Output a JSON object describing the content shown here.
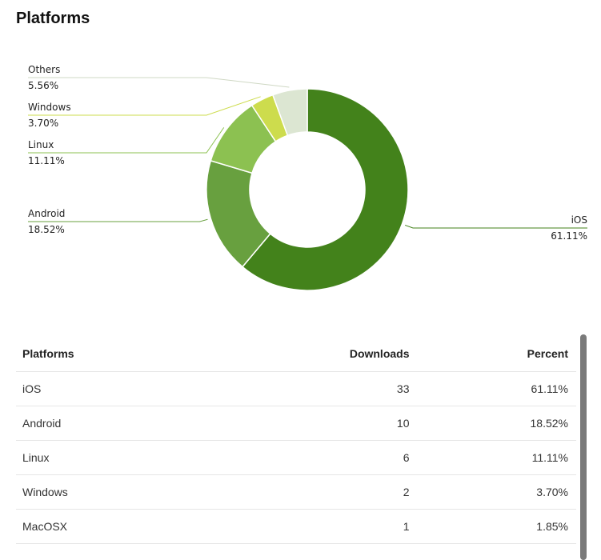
{
  "page": {
    "title": "Platforms"
  },
  "chart_data": {
    "type": "pie",
    "donut": true,
    "title": "",
    "slices": [
      {
        "label": "iOS",
        "value": 61.11,
        "display": "61.11%",
        "color": "#43821b"
      },
      {
        "label": "Android",
        "value": 18.52,
        "display": "18.52%",
        "color": "#68a03f"
      },
      {
        "label": "Linux",
        "value": 11.11,
        "display": "11.11%",
        "color": "#8cc151"
      },
      {
        "label": "Windows",
        "value": 3.7,
        "display": "3.70%",
        "color": "#cddc4d"
      },
      {
        "label": "Others",
        "value": 5.56,
        "display": "5.56%",
        "color": "#dce6d2"
      }
    ],
    "legend": "none"
  },
  "table": {
    "headers": [
      "Platforms",
      "Downloads",
      "Percent"
    ],
    "rows": [
      [
        "iOS",
        "33",
        "61.11%"
      ],
      [
        "Android",
        "10",
        "18.52%"
      ],
      [
        "Linux",
        "6",
        "11.11%"
      ],
      [
        "Windows",
        "2",
        "3.70%"
      ],
      [
        "MacOSX",
        "1",
        "1.85%"
      ]
    ]
  }
}
